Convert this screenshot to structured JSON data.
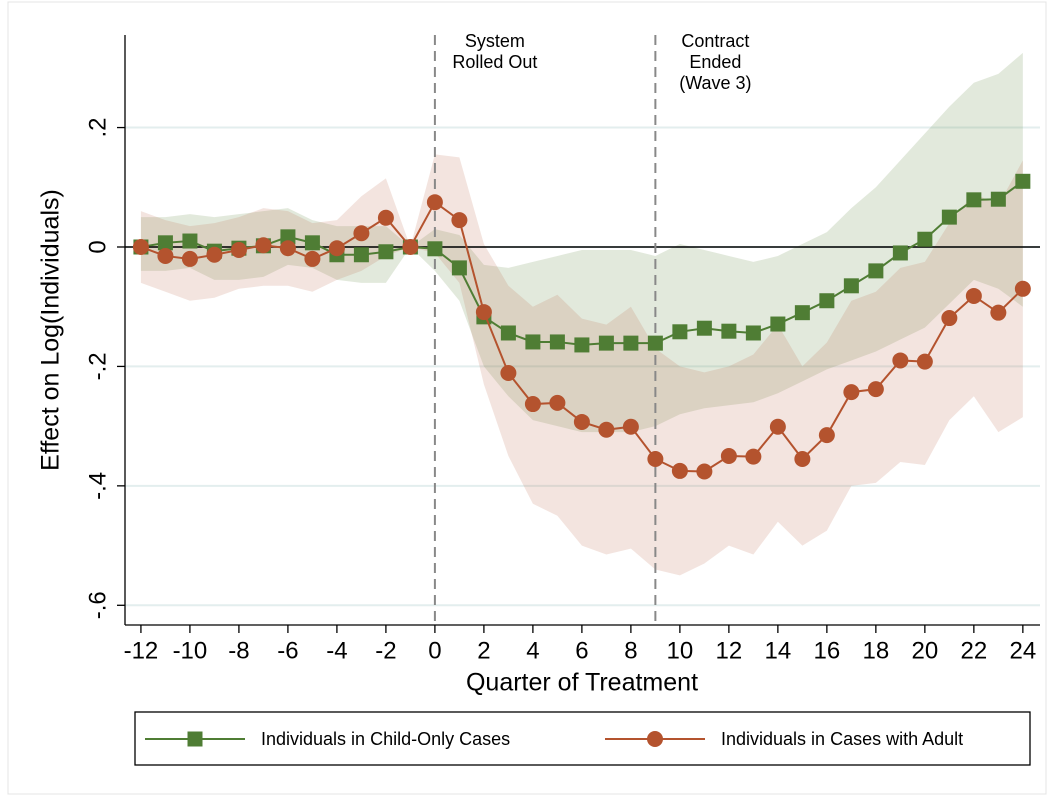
{
  "chart_data": {
    "type": "line",
    "xlabel": "Quarter of Treatment",
    "ylabel": "Effect on Log(Individuals)",
    "x": [
      -12,
      -11,
      -10,
      -9,
      -8,
      -7,
      -6,
      -5,
      -4,
      -3,
      -2,
      -1,
      0,
      1,
      2,
      3,
      4,
      5,
      6,
      7,
      8,
      9,
      10,
      11,
      12,
      13,
      14,
      15,
      16,
      17,
      18,
      19,
      20,
      21,
      22,
      23,
      24
    ],
    "series": [
      {
        "name": "Individuals in Child-Only Cases",
        "color": "#4f7d34",
        "marker": "square",
        "values": [
          0,
          0.007,
          0.01,
          -0.007,
          -0.002,
          0.002,
          0.017,
          0.007,
          -0.013,
          -0.013,
          -0.008,
          0,
          -0.003,
          -0.035,
          -0.117,
          -0.144,
          -0.159,
          -0.159,
          -0.164,
          -0.161,
          -0.161,
          -0.161,
          -0.142,
          -0.136,
          -0.141,
          -0.144,
          -0.129,
          -0.11,
          -0.09,
          -0.065,
          -0.04,
          -0.01,
          0.013,
          0.05,
          0.079,
          0.08,
          0.11
        ],
        "upper": [
          0.05,
          0.05,
          0.055,
          0.05,
          0.055,
          0.06,
          0.065,
          0.045,
          0.035,
          0.035,
          0.035,
          0,
          0.03,
          0.02,
          -0.03,
          -0.035,
          -0.025,
          -0.015,
          -0.005,
          -0.005,
          -0.005,
          -0.015,
          0.005,
          -0.005,
          -0.015,
          -0.025,
          -0.015,
          0.005,
          0.025,
          0.065,
          0.1,
          0.145,
          0.19,
          0.235,
          0.275,
          0.29,
          0.325
        ],
        "lower": [
          -0.04,
          -0.04,
          -0.035,
          -0.055,
          -0.055,
          -0.05,
          -0.03,
          -0.035,
          -0.055,
          -0.06,
          -0.06,
          0,
          -0.04,
          -0.09,
          -0.2,
          -0.25,
          -0.29,
          -0.3,
          -0.31,
          -0.31,
          -0.31,
          -0.3,
          -0.28,
          -0.27,
          -0.265,
          -0.26,
          -0.245,
          -0.225,
          -0.205,
          -0.19,
          -0.175,
          -0.155,
          -0.135,
          -0.095,
          -0.055,
          -0.07,
          -0.1
        ],
        "band_color": "rgba(110,145,80,0.2)"
      },
      {
        "name": "Individuals in Cases with Adult",
        "color": "#b4532e",
        "marker": "circle",
        "values": [
          0,
          -0.015,
          -0.02,
          -0.013,
          -0.005,
          0.003,
          -0.002,
          -0.02,
          -0.002,
          0.023,
          0.049,
          0,
          0.075,
          0.045,
          -0.109,
          -0.211,
          -0.263,
          -0.261,
          -0.293,
          -0.306,
          -0.301,
          -0.355,
          -0.375,
          -0.376,
          -0.35,
          -0.351,
          -0.301,
          -0.355,
          -0.315,
          -0.243,
          -0.238,
          -0.19,
          -0.192,
          -0.119,
          -0.082,
          -0.11,
          -0.07
        ],
        "upper": [
          0.06,
          0.045,
          0.035,
          0.04,
          0.05,
          0.065,
          0.06,
          0.04,
          0.045,
          0.085,
          0.115,
          0,
          0.155,
          0.15,
          0.005,
          -0.065,
          -0.1,
          -0.08,
          -0.12,
          -0.13,
          -0.1,
          -0.17,
          -0.2,
          -0.21,
          -0.2,
          -0.18,
          -0.13,
          -0.2,
          -0.16,
          -0.09,
          -0.075,
          -0.035,
          -0.025,
          0.04,
          0.09,
          0.07,
          0.145
        ],
        "lower": [
          -0.06,
          -0.075,
          -0.09,
          -0.085,
          -0.07,
          -0.065,
          -0.065,
          -0.075,
          -0.055,
          -0.04,
          -0.015,
          0,
          -0.01,
          -0.06,
          -0.23,
          -0.35,
          -0.43,
          -0.45,
          -0.5,
          -0.515,
          -0.505,
          -0.54,
          -0.55,
          -0.53,
          -0.5,
          -0.515,
          -0.46,
          -0.5,
          -0.475,
          -0.4,
          -0.395,
          -0.36,
          -0.365,
          -0.29,
          -0.25,
          -0.31,
          -0.285
        ],
        "band_color": "rgba(190,105,80,0.18)"
      }
    ],
    "xlim": [
      -12.65,
      24.7
    ],
    "xticks": [
      -12,
      -10,
      -8,
      -6,
      -4,
      -2,
      0,
      2,
      4,
      6,
      8,
      10,
      12,
      14,
      16,
      18,
      20,
      22,
      24
    ],
    "ylim": [
      -0.633,
      0.355
    ],
    "yticks": [
      {
        "value": 0.2,
        "label": ".2"
      },
      0,
      {
        "value": -0.2,
        "label": "-.2"
      },
      {
        "value": -0.4,
        "label": "-.4"
      },
      {
        "value": -0.6,
        "label": "-.6"
      }
    ],
    "grid": true,
    "reference_line": 0,
    "annotations": [
      {
        "x": 0,
        "lines": [
          "System",
          "Rolled Out"
        ]
      },
      {
        "x": 9,
        "lines": [
          "Contract",
          "Ended",
          "(Wave 3)"
        ]
      }
    ],
    "legend": "bottom"
  }
}
